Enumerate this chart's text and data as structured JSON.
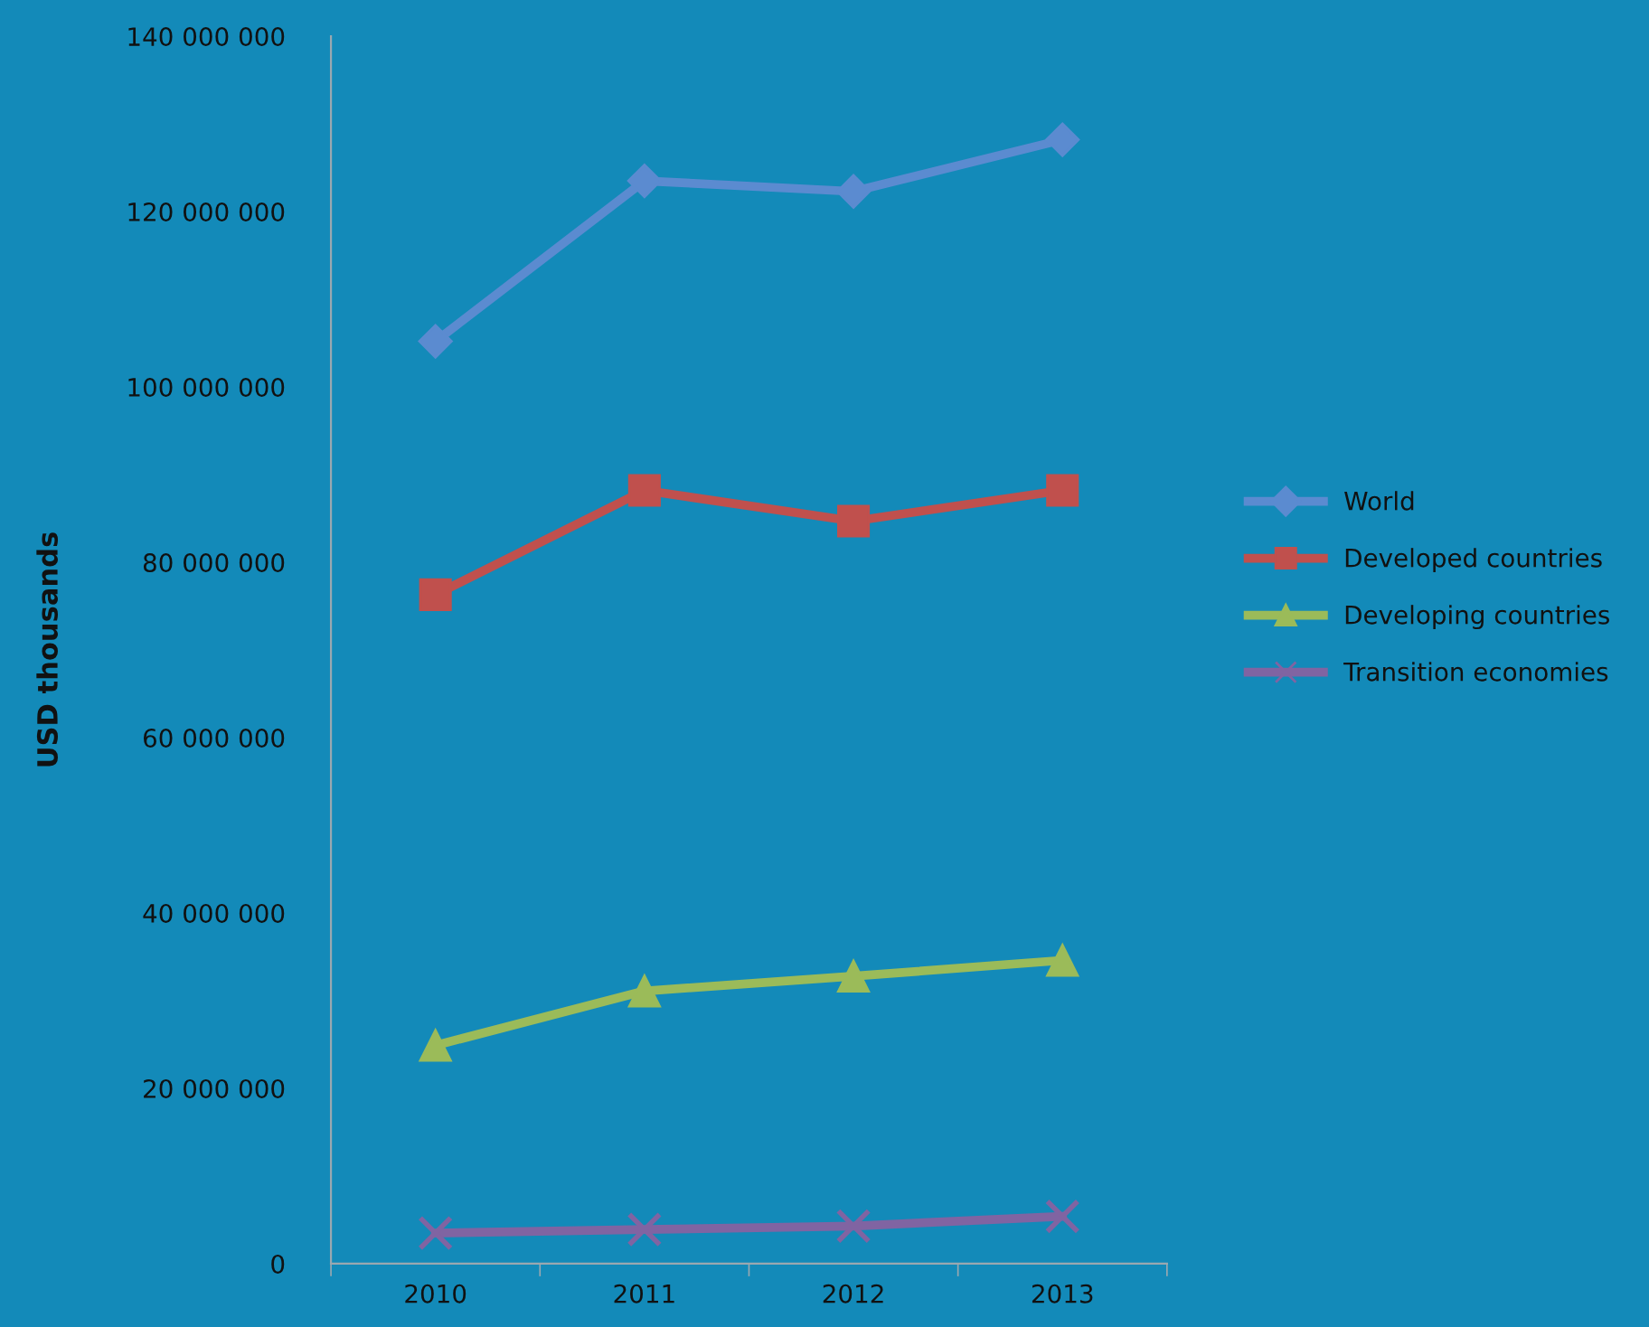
{
  "chart_data": {
    "type": "line",
    "ylabel": "USD thousands",
    "categories": [
      "2010",
      "2011",
      "2012",
      "2013"
    ],
    "series": [
      {
        "name": "World",
        "color": "#5b8bd0",
        "marker": "diamond",
        "values": [
          105200000,
          123500000,
          122300000,
          128200000
        ]
      },
      {
        "name": "Developed countries",
        "color": "#c0504d",
        "marker": "square",
        "values": [
          76300000,
          88200000,
          84700000,
          88200000
        ]
      },
      {
        "name": "Developing countries",
        "color": "#9bbb59",
        "marker": "triangle",
        "values": [
          24900000,
          31100000,
          32800000,
          34600000
        ]
      },
      {
        "name": "Transition economies",
        "color": "#8064a2",
        "marker": "cross",
        "values": [
          3500000,
          3900000,
          4300000,
          5400000
        ]
      }
    ],
    "ylim": [
      0,
      140000000
    ],
    "yticks": [
      0,
      {
        "value": 20000000,
        "label": "20 000 000"
      },
      {
        "value": 40000000,
        "label": "40 000 000"
      },
      {
        "value": 60000000,
        "label": "60 000 000"
      },
      {
        "value": 80000000,
        "label": "80 000 000"
      },
      {
        "value": 100000000,
        "label": "100 000 000"
      },
      {
        "value": 120000000,
        "label": "120 000 000"
      },
      {
        "value": 140000000,
        "label": "140 000 000"
      }
    ],
    "grid": false,
    "legend": "right"
  }
}
